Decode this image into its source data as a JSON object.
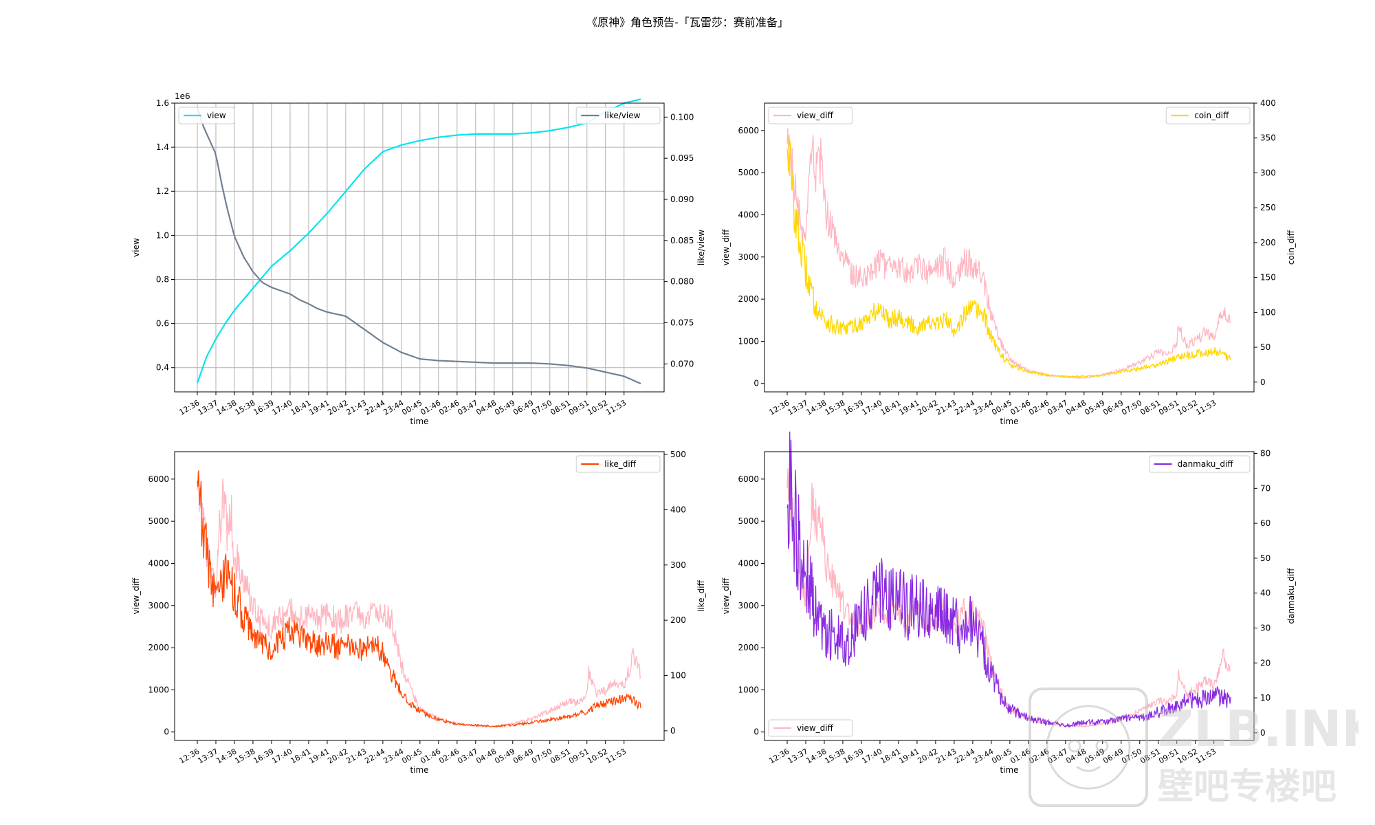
{
  "figure_title": "《原神》角色预告-「瓦雷莎：赛前准备」",
  "time_ticks": [
    "12:36",
    "13:37",
    "14:38",
    "15:38",
    "16:39",
    "17:40",
    "18:41",
    "19:41",
    "20:42",
    "21:43",
    "22:44",
    "23:44",
    "00:45",
    "01:46",
    "02:46",
    "03:47",
    "04:48",
    "05:49",
    "06:49",
    "07:50",
    "08:51",
    "09:51",
    "10:52",
    "11:53"
  ],
  "watermark": {
    "line1": "ZLB.INK",
    "line2": "壁吧专楼吧"
  },
  "chart_data": [
    {
      "type": "line",
      "xlabel": "time",
      "ylabel": "view",
      "ylabel_right": "like/view",
      "offset_text": "1e6",
      "grid": true,
      "ylim": [
        0.29,
        1.6
      ],
      "ylim_right": [
        0.0666,
        0.1017
      ],
      "yticks": [
        "0.4",
        "0.6",
        "0.8",
        "1.0",
        "1.2",
        "1.4",
        "1.6"
      ],
      "yticks_right": [
        "0.070",
        "0.075",
        "0.080",
        "0.085",
        "0.090",
        "0.095",
        "0.100"
      ],
      "series": [
        {
          "name": "view",
          "axis": "left",
          "color": "#00e5ee",
          "x": [
            0,
            0.5,
            1,
            1.5,
            2,
            3,
            4,
            5,
            6,
            7,
            8,
            9,
            10,
            11,
            11.5,
            12,
            13,
            14,
            15,
            16,
            17,
            18,
            19,
            20,
            21,
            22,
            23,
            24
          ],
          "y": [
            0.33,
            0.45,
            0.53,
            0.6,
            0.66,
            0.76,
            0.86,
            0.93,
            1.01,
            1.1,
            1.2,
            1.3,
            1.38,
            1.41,
            1.42,
            1.43,
            1.445,
            1.455,
            1.46,
            1.46,
            1.46,
            1.465,
            1.475,
            1.49,
            1.51,
            1.56,
            1.6,
            1.62
          ]
        },
        {
          "name": "like/view",
          "axis": "right",
          "color": "#708090",
          "x": [
            0,
            0.3,
            0.6,
            1,
            1.3,
            1.6,
            2,
            2.5,
            3,
            3.5,
            4,
            5,
            5.5,
            6,
            6.5,
            7,
            8,
            9,
            10,
            11,
            12,
            13,
            14,
            15,
            16,
            17,
            18,
            19,
            20,
            21,
            22,
            23,
            24
          ],
          "y": [
            0.1012,
            0.099,
            0.0975,
            0.0955,
            0.092,
            0.089,
            0.0855,
            0.083,
            0.0812,
            0.0799,
            0.0793,
            0.0785,
            0.0778,
            0.0773,
            0.0767,
            0.0763,
            0.0758,
            0.0742,
            0.0726,
            0.0714,
            0.0706,
            0.0704,
            0.0703,
            0.0702,
            0.0701,
            0.0701,
            0.0701,
            0.07,
            0.0698,
            0.0695,
            0.069,
            0.0685,
            0.0675
          ]
        }
      ],
      "legends": [
        {
          "label": "view",
          "loc": "upper left"
        },
        {
          "label": "like/view",
          "loc": "upper right"
        }
      ]
    },
    {
      "type": "line",
      "xlabel": "time",
      "ylabel": "view_diff",
      "ylabel_right": "coin_diff",
      "grid": false,
      "ylim": [
        -200,
        6650
      ],
      "ylim_right": [
        -14,
        400
      ],
      "yticks": [
        "0",
        "1000",
        "2000",
        "3000",
        "4000",
        "5000",
        "6000"
      ],
      "yticks_right": [
        "0",
        "50",
        "100",
        "150",
        "200",
        "250",
        "300",
        "350",
        "400"
      ],
      "series": [
        {
          "name": "view_diff",
          "axis": "left",
          "color": "#ffb6c1",
          "x": [
            0,
            0.3,
            0.6,
            1,
            1.2,
            1.4,
            1.6,
            1.8,
            2,
            2.5,
            3,
            3.5,
            4,
            4.5,
            5,
            5.5,
            6,
            6.5,
            7,
            7.5,
            8,
            8.5,
            9,
            9.5,
            10,
            10.5,
            11,
            11.5,
            12,
            13,
            14,
            15,
            16,
            17,
            18,
            19,
            19.5,
            20,
            20.5,
            21,
            21.1,
            21.5,
            22,
            22.5,
            23,
            23.5,
            24
          ],
          "y": [
            6000,
            5000,
            4000,
            3200,
            4800,
            5600,
            4800,
            5300,
            4200,
            3500,
            3000,
            2600,
            2500,
            2700,
            2900,
            2700,
            2800,
            2600,
            2900,
            2600,
            2700,
            2900,
            2500,
            2900,
            2800,
            2600,
            1600,
            1000,
            550,
            300,
            200,
            150,
            130,
            200,
            320,
            500,
            600,
            750,
            700,
            880,
            1400,
            900,
            1000,
            1200,
            1100,
            1800,
            1300
          ]
        },
        {
          "name": "coin_diff",
          "axis": "right",
          "color": "#ffd700",
          "x": [
            0,
            0.3,
            0.6,
            1,
            1.5,
            2,
            2.5,
            3,
            3.5,
            4,
            4.5,
            5,
            5.5,
            6,
            6.5,
            7,
            7.5,
            8,
            8.5,
            9,
            9.5,
            10,
            10.5,
            11,
            11.5,
            12,
            13,
            14,
            15,
            16,
            17,
            18,
            19,
            20,
            20.5,
            21,
            21.5,
            22,
            22.5,
            23,
            23.5,
            24
          ],
          "y": [
            360,
            270,
            210,
            160,
            110,
            90,
            80,
            75,
            80,
            85,
            95,
            105,
            90,
            95,
            85,
            78,
            88,
            80,
            90,
            75,
            95,
            105,
            100,
            65,
            40,
            25,
            15,
            10,
            8,
            8,
            10,
            15,
            20,
            25,
            30,
            35,
            38,
            40,
            42,
            45,
            40,
            30
          ]
        }
      ],
      "legends": [
        {
          "label": "view_diff",
          "loc": "upper left"
        },
        {
          "label": "coin_diff",
          "loc": "upper right"
        }
      ]
    },
    {
      "type": "line",
      "xlabel": "time",
      "ylabel": "view_diff",
      "ylabel_right": "like_diff",
      "grid": false,
      "ylim": [
        -200,
        6650
      ],
      "ylim_right": [
        -17.5,
        505
      ],
      "yticks": [
        "0",
        "1000",
        "2000",
        "3000",
        "4000",
        "5000",
        "6000"
      ],
      "yticks_right": [
        "0",
        "100",
        "200",
        "300",
        "400",
        "500"
      ],
      "series": [
        {
          "name": "view_diff",
          "axis": "left",
          "color": "#ffb6c1",
          "x": [
            0,
            0.3,
            0.6,
            1,
            1.2,
            1.4,
            1.6,
            1.8,
            2,
            2.5,
            3,
            3.5,
            4,
            4.5,
            5,
            5.5,
            6,
            6.5,
            7,
            7.5,
            8,
            8.5,
            9,
            9.5,
            10,
            10.5,
            11,
            11.5,
            12,
            13,
            14,
            15,
            16,
            17,
            18,
            19,
            19.5,
            20,
            20.5,
            21,
            21.1,
            21.5,
            22,
            22.5,
            23,
            23.5,
            24
          ],
          "y": [
            6000,
            5000,
            4000,
            3200,
            4800,
            5600,
            4800,
            5300,
            4200,
            3500,
            3000,
            2600,
            2500,
            2700,
            2900,
            2700,
            2800,
            2600,
            2900,
            2600,
            2700,
            2900,
            2500,
            2900,
            2800,
            2600,
            1600,
            1000,
            550,
            300,
            200,
            150,
            130,
            200,
            320,
            500,
            600,
            750,
            700,
            880,
            1400,
            900,
            1000,
            1200,
            1100,
            1800,
            1300
          ]
        },
        {
          "name": "like_diff",
          "axis": "right",
          "color": "#ff4500",
          "x": [
            0,
            0.3,
            0.6,
            1,
            1.3,
            1.6,
            2,
            2.5,
            3,
            3.5,
            4,
            4.5,
            5,
            5.5,
            6,
            6.5,
            7,
            7.5,
            8,
            8.5,
            9,
            9.5,
            10,
            10.5,
            11,
            11.5,
            12,
            13,
            14,
            15,
            16,
            17,
            18,
            19,
            20,
            20.5,
            21,
            21.5,
            22,
            22.5,
            23,
            23.5,
            24
          ],
          "y": [
            480,
            370,
            300,
            240,
            270,
            280,
            250,
            210,
            170,
            160,
            145,
            160,
            185,
            175,
            165,
            150,
            160,
            150,
            160,
            145,
            150,
            160,
            140,
            100,
            70,
            50,
            35,
            20,
            12,
            10,
            8,
            10,
            15,
            20,
            25,
            30,
            35,
            45,
            50,
            55,
            60,
            55,
            40
          ]
        }
      ],
      "legends": [
        {
          "label": "like_diff",
          "loc": "upper right"
        }
      ]
    },
    {
      "type": "line",
      "xlabel": "time",
      "ylabel": "view_diff",
      "ylabel_right": "danmaku_diff",
      "grid": false,
      "ylim": [
        -200,
        6650
      ],
      "ylim_right": [
        -2.2,
        80.5
      ],
      "yticks": [
        "0",
        "1000",
        "2000",
        "3000",
        "4000",
        "5000",
        "6000"
      ],
      "yticks_right": [
        "0",
        "10",
        "20",
        "30",
        "40",
        "50",
        "60",
        "70",
        "80"
      ],
      "series": [
        {
          "name": "view_diff",
          "axis": "left",
          "color": "#ffb6c1",
          "x": [
            0,
            0.3,
            0.6,
            1,
            1.2,
            1.4,
            1.6,
            1.8,
            2,
            2.5,
            3,
            3.5,
            4,
            4.5,
            5,
            5.5,
            6,
            6.5,
            7,
            7.5,
            8,
            8.5,
            9,
            9.5,
            10,
            10.5,
            11,
            11.5,
            12,
            13,
            14,
            15,
            16,
            17,
            18,
            19,
            19.5,
            20,
            20.5,
            21,
            21.1,
            21.5,
            22,
            22.5,
            23,
            23.5,
            24
          ],
          "y": [
            6000,
            5000,
            4000,
            3200,
            4800,
            5600,
            4800,
            5300,
            4200,
            3500,
            3000,
            2600,
            2500,
            2700,
            2900,
            2700,
            2800,
            2600,
            2900,
            2600,
            2700,
            2900,
            2500,
            2900,
            2800,
            2600,
            1600,
            1000,
            550,
            300,
            200,
            150,
            130,
            200,
            320,
            500,
            600,
            750,
            700,
            880,
            1400,
            900,
            1000,
            1200,
            1100,
            1800,
            1300
          ]
        },
        {
          "name": "danmaku_diff",
          "axis": "right",
          "color": "#8a2be2",
          "x": [
            0,
            0.3,
            0.6,
            1,
            1.5,
            2,
            2.5,
            3,
            3.5,
            4,
            4.5,
            5,
            5.5,
            6,
            6.5,
            7,
            7.5,
            8,
            8.5,
            9,
            9.5,
            10,
            10.5,
            11,
            11.5,
            12,
            13,
            14,
            15,
            16,
            17,
            18,
            19,
            20,
            20.5,
            21,
            21.5,
            22,
            22.5,
            23,
            23.5,
            24
          ],
          "y": [
            70,
            65,
            55,
            45,
            35,
            30,
            28,
            25,
            28,
            33,
            38,
            42,
            38,
            37,
            36,
            38,
            35,
            36,
            34,
            30,
            32,
            31,
            25,
            18,
            10,
            7,
            4,
            3,
            2,
            3,
            3,
            4,
            4,
            6,
            7,
            8,
            9,
            9,
            10,
            11,
            10,
            8
          ]
        }
      ],
      "legends": [
        {
          "label": "danmaku_diff",
          "loc": "upper right"
        },
        {
          "label": "view_diff",
          "loc": "lower left"
        }
      ]
    }
  ]
}
